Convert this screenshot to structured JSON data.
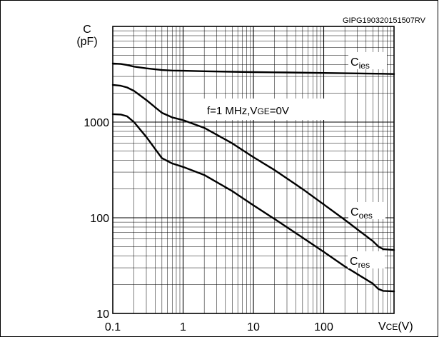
{
  "chart_data": {
    "type": "line",
    "code": "GIPG190320151507RV",
    "y_unit_symbol": "C",
    "y_unit": "(pF)",
    "x_label_main": "V",
    "x_label_sub": "CE",
    "x_label_unit": "(V)",
    "x_scale": "log",
    "y_scale": "log",
    "xlim": [
      0.1,
      1000
    ],
    "ylim": [
      10,
      10000
    ],
    "grid": true,
    "x_ticks": [
      "0.1",
      "1",
      "10",
      "100"
    ],
    "y_ticks": [
      "10",
      "100",
      "1000"
    ],
    "annotation_main": "f=1 MHz,V",
    "annotation_sub": "GE",
    "annotation_rest": "=0V",
    "series": [
      {
        "name": "C",
        "name_sub": "ies",
        "x": [
          0.1,
          0.13,
          0.16,
          0.2,
          0.3,
          0.5,
          0.7,
          1,
          2,
          5,
          10,
          30,
          100,
          300,
          700,
          1000
        ],
        "y": [
          4100,
          4050,
          3950,
          3800,
          3650,
          3500,
          3460,
          3440,
          3400,
          3360,
          3330,
          3300,
          3260,
          3230,
          3200,
          3180
        ]
      },
      {
        "name": "C",
        "name_sub": "oes",
        "x": [
          0.1,
          0.13,
          0.16,
          0.2,
          0.3,
          0.5,
          0.7,
          1,
          2,
          5,
          10,
          20,
          50,
          100,
          200,
          500,
          600,
          700,
          1000
        ],
        "y": [
          2450,
          2400,
          2300,
          2120,
          1700,
          1250,
          1120,
          1050,
          870,
          600,
          430,
          315,
          200,
          138,
          95,
          57,
          50,
          47,
          46
        ]
      },
      {
        "name": "C",
        "name_sub": "res",
        "x": [
          0.1,
          0.13,
          0.16,
          0.2,
          0.3,
          0.5,
          0.7,
          1,
          2,
          5,
          10,
          20,
          50,
          100,
          200,
          500,
          600,
          700,
          1000
        ],
        "y": [
          1210,
          1200,
          1150,
          1000,
          700,
          420,
          370,
          340,
          280,
          190,
          135,
          97,
          62,
          44,
          31,
          20.5,
          18,
          17.2,
          17
        ]
      }
    ]
  }
}
